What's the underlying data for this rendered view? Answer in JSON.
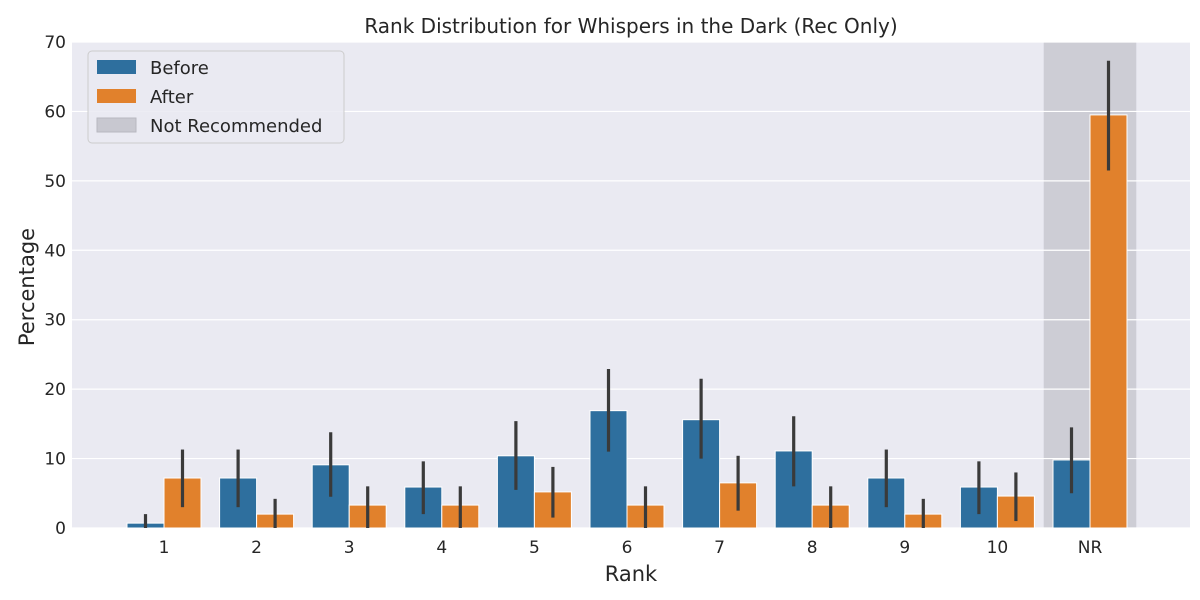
{
  "chart_data": {
    "type": "bar",
    "title": "Rank Distribution for Whispers in the Dark (Rec Only)",
    "xlabel": "Rank",
    "ylabel": "Percentage",
    "ylim": [
      0,
      70
    ],
    "yticks": [
      "0",
      "10",
      "20",
      "30",
      "40",
      "50",
      "60",
      "70"
    ],
    "categories": [
      "1",
      "2",
      "3",
      "4",
      "5",
      "6",
      "7",
      "8",
      "9",
      "10",
      "NR"
    ],
    "series": [
      {
        "name": "Before",
        "color": "#2e6f9e",
        "values": [
          0.7,
          7.2,
          9.1,
          5.9,
          10.4,
          16.9,
          15.6,
          11.1,
          7.2,
          5.9,
          9.8
        ],
        "err_low": [
          0.0,
          3.0,
          4.5,
          2.0,
          5.5,
          11.0,
          10.0,
          6.0,
          3.0,
          2.0,
          5.0
        ],
        "err_high": [
          2.0,
          11.3,
          13.8,
          9.6,
          15.4,
          22.9,
          21.5,
          16.1,
          11.3,
          9.6,
          14.5
        ]
      },
      {
        "name": "After",
        "color": "#e1812c",
        "values": [
          7.2,
          2.0,
          3.3,
          3.3,
          5.2,
          3.3,
          6.5,
          3.3,
          2.0,
          4.6,
          59.5
        ],
        "err_low": [
          3.0,
          0.0,
          0.0,
          0.0,
          1.5,
          0.0,
          2.5,
          0.0,
          0.0,
          1.0,
          51.5
        ],
        "err_high": [
          11.3,
          4.2,
          6.0,
          6.0,
          8.8,
          6.0,
          10.4,
          6.0,
          4.2,
          8.0,
          67.3
        ]
      }
    ],
    "highlight": {
      "category": "NR",
      "label": "Not Recommended",
      "color": "#c8c8d0"
    },
    "legend": {
      "position": "top-left",
      "entries": [
        {
          "label": "Before",
          "color": "#2e6f9e"
        },
        {
          "label": "After",
          "color": "#e1812c"
        },
        {
          "label": "Not Recommended",
          "color": "#c8c8d0"
        }
      ]
    },
    "grid": true,
    "error_bar_color": "#3a3a3a"
  }
}
